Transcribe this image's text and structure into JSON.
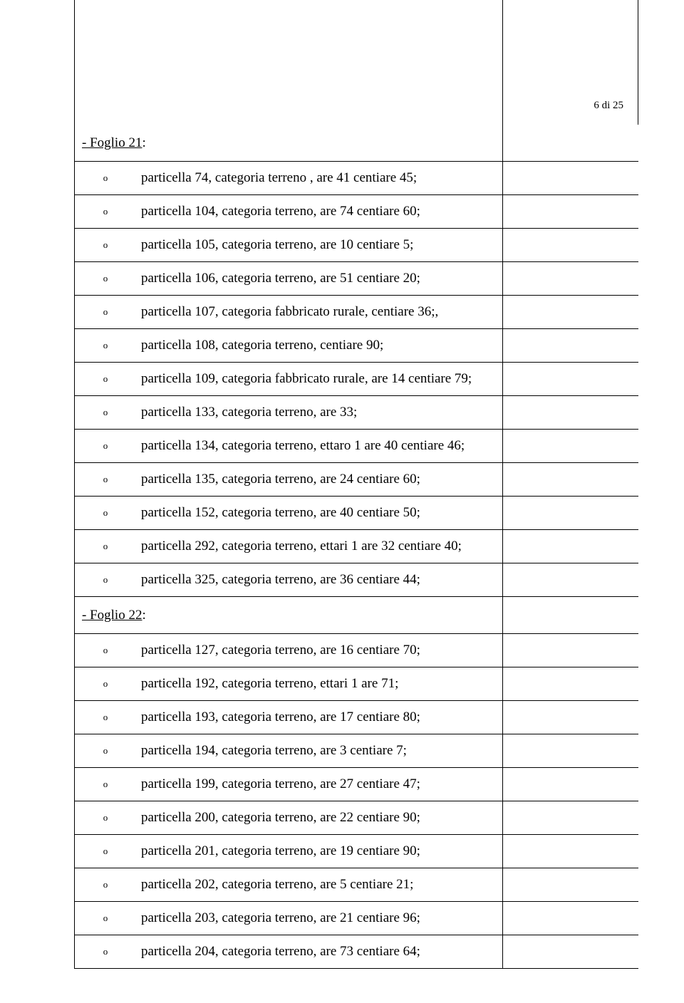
{
  "page_number": "6 di 25",
  "sections": [
    {
      "title": "- Foglio 21",
      "items": [
        "particella 74, categoria terreno , are 41 centiare 45;",
        "particella 104, categoria terreno, are 74 centiare 60;",
        " particella 105, categoria terreno, are 10 centiare 5;",
        "particella 106, categoria terreno, are 51 centiare 20;",
        "particella 107, categoria fabbricato rurale, centiare 36;,",
        "particella 108, categoria terreno, centiare 90;",
        "particella 109, categoria fabbricato rurale, are 14 centiare 79;",
        "particella 133, categoria terreno, are 33;",
        "particella 134, categoria terreno,  ettaro 1 are 40 centiare 46;",
        "particella 135, categoria terreno, are 24 centiare 60;",
        "particella 152, categoria terreno, are 40 centiare 50;",
        "particella 292, categoria terreno,  ettari 1 are 32 centiare 40;",
        "particella 325, categoria terreno, are 36 centiare 44;"
      ]
    },
    {
      "title": "- Foglio 22",
      "items": [
        "particella 127, categoria terreno, are 16 centiare 70;",
        "particella 192, categoria terreno,  ettari 1 are 71;",
        "particella 193, categoria terreno, are 17 centiare 80;",
        "particella 194, categoria terreno, are 3 centiare 7;",
        "particella 199, categoria terreno, are 27 centiare 47;",
        "particella 200, categoria terreno, are 22 centiare 90;",
        "particella 201, categoria terreno, are 19 centiare 90;",
        "particella 202, categoria terreno, are 5 centiare 21;",
        "particella 203, categoria terreno, are 21 centiare 96;",
        "particella 204, categoria terreno, are 73 centiare 64;"
      ]
    }
  ],
  "bullet_char": "o",
  "colon": ":"
}
